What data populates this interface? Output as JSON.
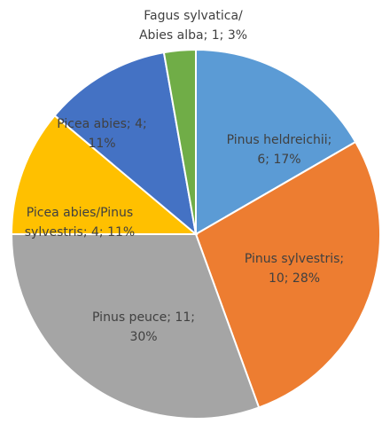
{
  "chart_data": {
    "type": "pie",
    "values": [
      6,
      10,
      11,
      4,
      4,
      1
    ],
    "value_labels": [
      [
        "Pinus heldreichii;",
        "6; 17%"
      ],
      [
        "Pinus sylvestris;",
        "10; 28%"
      ],
      [
        "Pinus peuce; 11;",
        "30%"
      ],
      [
        "Picea abies/Pinus",
        "sylvestris; 4; 11%"
      ],
      [
        "Picea abies; 4;",
        "11%"
      ],
      [
        "Fagus sylvatica/",
        "Abies alba; 1; 3%"
      ]
    ],
    "colors": [
      "#5b9bd5",
      "#ed7d31",
      "#a5a5a5",
      "#ffc000",
      "#4472c4",
      "#70ad47"
    ]
  }
}
